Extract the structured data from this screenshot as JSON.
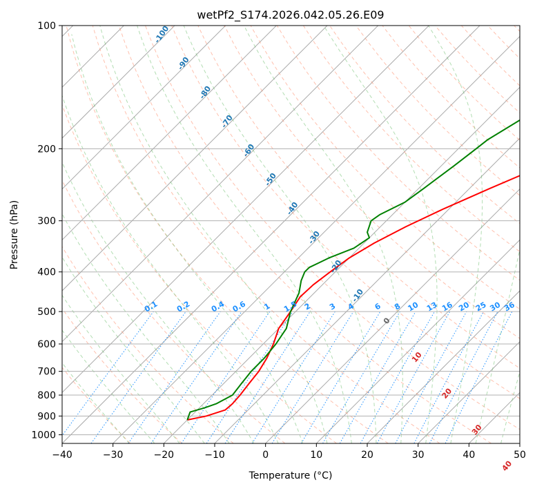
{
  "chart_data": {
    "type": "line",
    "title": "wetPf2_S174.2026.042.05.26.E09",
    "xlabel": "Temperature (°C)",
    "ylabel": "Pressure (hPa)",
    "xlim": [
      -40,
      50
    ],
    "ylim": [
      1050,
      100
    ],
    "y_scale": "log",
    "grid": true,
    "x_ticks": [
      -40,
      -30,
      -20,
      -10,
      0,
      10,
      20,
      30,
      40,
      50
    ],
    "y_ticks": [
      100,
      200,
      300,
      400,
      500,
      600,
      700,
      800,
      900,
      1000
    ],
    "series": [
      {
        "role": "temperature",
        "color": "#ff0000",
        "pressure": [
          920,
          900,
          870,
          840,
          800,
          750,
          700,
          650,
          600,
          550,
          500,
          460,
          430,
          400,
          370,
          340,
          310,
          280,
          250,
          220,
          200,
          180,
          160,
          140,
          120,
          100
        ],
        "values": [
          -20,
          -17,
          -14.5,
          -14.3,
          -14.5,
          -15,
          -15.5,
          -16.5,
          -18,
          -20,
          -21,
          -22,
          -21.8,
          -21,
          -20,
          -18,
          -15,
          -11,
          -6,
          0,
          4,
          7,
          10,
          12,
          13,
          15
        ]
      },
      {
        "role": "dewpoint",
        "color": "#008000",
        "pressure": [
          920,
          900,
          880,
          860,
          840,
          800,
          750,
          700,
          650,
          600,
          550,
          500,
          450,
          420,
          400,
          390,
          380,
          370,
          350,
          330,
          320,
          300,
          290,
          270,
          250,
          220,
          200,
          190,
          170,
          150,
          130,
          110,
          100
        ],
        "values": [
          -20,
          -20.5,
          -21,
          -19,
          -17.5,
          -16,
          -16.5,
          -17,
          -17,
          -17.5,
          -18.5,
          -21,
          -23,
          -25,
          -26,
          -26,
          -25,
          -24,
          -21,
          -20,
          -21.5,
          -23,
          -22.5,
          -20,
          -19,
          -17.5,
          -16.5,
          -16,
          -13.5,
          -10,
          -5.5,
          -0.5,
          2
        ]
      }
    ],
    "isotherm_labels": [],
    "moist_adiabat_labels": [
      "0",
      "10",
      "20",
      "30",
      "40"
    ],
    "dry_adiabat_labels": [
      "-100",
      "-90",
      "-80",
      "-70",
      "-60",
      "-50",
      "-40",
      "-30",
      "-20",
      "-10"
    ],
    "mixing_ratio_labels": [
      "0.1",
      "0.2",
      "0.4",
      "0.6",
      "1",
      "1.5",
      "2",
      "3",
      "4",
      "6",
      "8",
      "10",
      "13",
      "16",
      "20",
      "25",
      "30",
      "36"
    ],
    "colors": {
      "isotherm": "#888888",
      "dry_adiabat": "#ff8c69",
      "moist_adiabat": "#66bb66",
      "mixing_ratio": "#1e90ff",
      "dry_label": "#1f77b4",
      "moist_label": "#d62728"
    }
  }
}
